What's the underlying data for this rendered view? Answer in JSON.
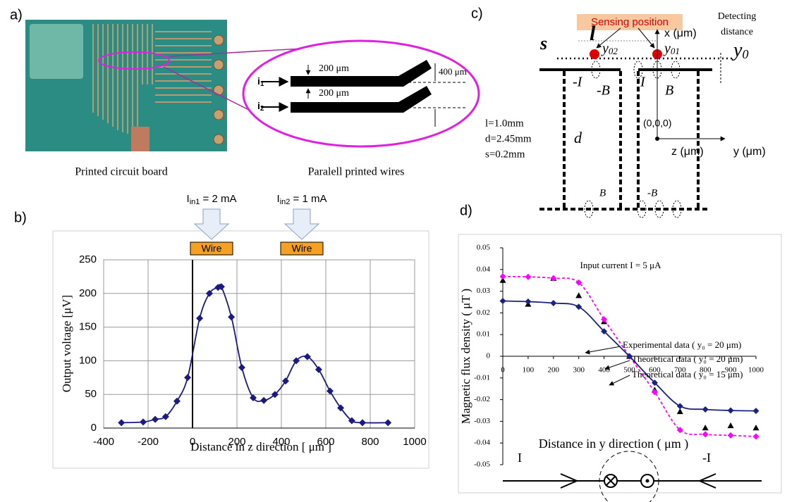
{
  "panels": {
    "a": "a)",
    "b": "b)",
    "c": "c)",
    "d": "d)"
  },
  "photo": {
    "caption": "Printed circuit board"
  },
  "inset": {
    "caption": "Paralell printed wires",
    "width_top": "200 μm",
    "gap": "200 μm",
    "offset": "400 μm",
    "wire_1": {
      "main": "i",
      "sub": "1"
    },
    "wire_2": {
      "main": "i",
      "sub": "2"
    }
  },
  "sensor_diagram": {
    "sensing_position": "Sensing position",
    "detecting_distance": [
      "Detecting",
      "distance"
    ],
    "x_axis": "x (μm)",
    "y_axis": "y (μm)",
    "z_axis": "z (μm)",
    "origin": "(0,0,0)",
    "l": "l",
    "s": "s",
    "y02": {
      "main": "y",
      "sub": "02"
    },
    "y01": {
      "main": "y",
      "sub": "01"
    },
    "y0": {
      "main": "y",
      "sub": "0"
    },
    "left_current": "-I",
    "left_field": "-B",
    "right_current": "I",
    "right_field": "B",
    "params": [
      "l=1.0mm",
      "d=2.45mm",
      "s=0.2mm"
    ],
    "d": "d",
    "bottom_left_field": "B",
    "bottom_right_field": "-B"
  },
  "current_diagram": {
    "left": "I",
    "right": "-I"
  },
  "chart_data": [
    {
      "type": "line",
      "x_label": "Distance in z direction [ μm ]",
      "y_label": "Output voltage [μV]",
      "x": [
        -320,
        -222,
        -168,
        -121,
        -70,
        -22,
        32,
        76,
        115,
        130,
        175,
        222,
        273,
        321,
        371,
        419,
        467,
        517,
        568,
        619,
        667,
        717,
        765,
        880
      ],
      "series": [
        {
          "color": "#1a1a80",
          "marker": "diamond",
          "style": "smooth",
          "values": [
            8,
            9,
            13,
            17,
            40,
            75,
            163,
            200,
            209,
            210,
            165,
            90,
            45,
            41,
            50,
            70,
            100,
            106,
            87,
            55,
            30,
            11,
            8,
            8
          ]
        }
      ],
      "xlim": [
        -400,
        1000
      ],
      "xticks": [
        -400,
        -200,
        0,
        200,
        400,
        600,
        800,
        1000
      ],
      "ylim": [
        0,
        250
      ],
      "yticks": [
        0,
        50,
        100,
        150,
        200,
        250
      ],
      "grid": true,
      "annotations": [
        {
          "current": {
            "main": "I",
            "sub": "in1",
            "rest": " = 2 mA"
          },
          "marker": "Wire"
        },
        {
          "current": {
            "main": "I",
            "sub": "in2",
            "rest": " = 1 mA"
          },
          "marker": "Wire"
        }
      ]
    },
    {
      "type": "line",
      "title": "Input current I = 5 μA",
      "x_label": "Distance in y direction ( μm )",
      "y_label": "Magnetic flux density ( μT )",
      "x": [
        0,
        100,
        200,
        300,
        400,
        500,
        600,
        700,
        800,
        900,
        1000
      ],
      "series": [
        {
          "name": "Experimental data ( y₀ = 20 μm)",
          "color": "#000000",
          "marker": "triangle",
          "style": "none",
          "values": [
            0.035,
            0.024,
            0.036,
            0.028,
            0.016,
            0,
            -0.0155,
            -0.0255,
            -0.033,
            -0.032,
            -0.033
          ]
        },
        {
          "name": "Theoretical data ( y₀ = 20 μm)",
          "color": "#ff00ff",
          "marker": "diamond",
          "style": "dashed",
          "values": [
            0.0368,
            0.0366,
            0.036,
            0.034,
            0.017,
            0,
            -0.0165,
            -0.034,
            -0.036,
            -0.0365,
            -0.037
          ]
        },
        {
          "name": "Theoretical data ( y₀ = 15 μm)",
          "color": "#1a237e",
          "marker": "diamond",
          "style": "smooth",
          "values": [
            0.0255,
            0.0252,
            0.0245,
            0.0228,
            0.0115,
            0,
            -0.0122,
            -0.023,
            -0.0245,
            -0.025,
            -0.0252
          ]
        }
      ],
      "xlim": [
        0,
        1000
      ],
      "xticks": [
        0,
        100,
        200,
        300,
        400,
        500,
        600,
        700,
        800,
        900,
        1000
      ],
      "ylim": [
        -0.05,
        0.05
      ],
      "yticks": [
        0.05,
        0.04,
        0.03,
        0.02,
        0.01,
        0,
        -0.01,
        -0.02,
        -0.03,
        -0.04,
        -0.05
      ],
      "grid": false
    }
  ]
}
